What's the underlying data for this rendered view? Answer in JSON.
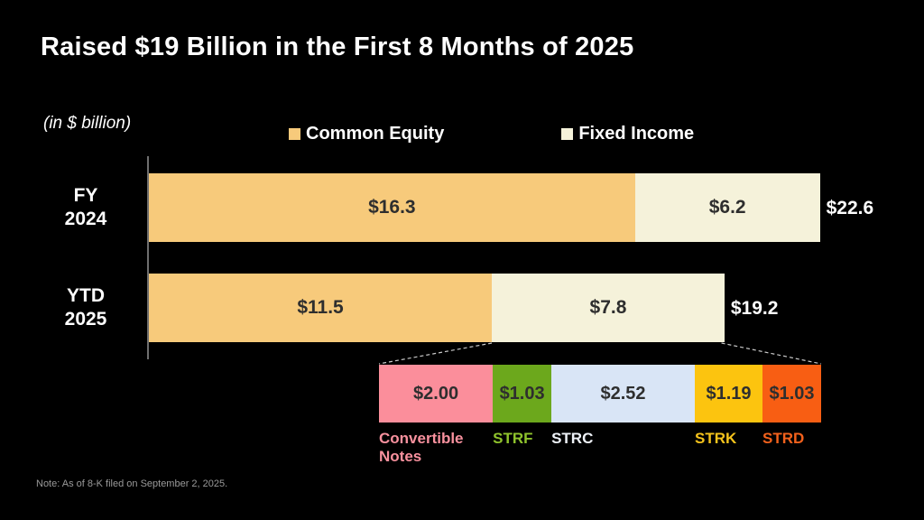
{
  "slide": {
    "title": "Raised $19 Billion in the First 8 Months of 2025",
    "units_label": "(in $ billion)",
    "note": "Note: As of 8-K filed on September 2, 2025."
  },
  "legend": {
    "items": [
      {
        "label": "Common Equity",
        "color": "#F7CA7B"
      },
      {
        "label": "Fixed Income",
        "color": "#F5F2DA"
      }
    ]
  },
  "chart_data": {
    "type": "bar",
    "orientation": "horizontal",
    "stacked": true,
    "unit": "$ billion",
    "title": "Raised $19 Billion in the First 8 Months of 2025",
    "categories": [
      "FY 2024",
      "YTD 2025"
    ],
    "series": [
      {
        "name": "Common Equity",
        "color": "#F7CA7B",
        "values": [
          16.3,
          11.5
        ],
        "labels": [
          "$16.3",
          "$11.5"
        ]
      },
      {
        "name": "Fixed Income",
        "color": "#F5F2DA",
        "values": [
          6.2,
          7.8
        ],
        "labels": [
          "$6.2",
          "$7.8"
        ]
      }
    ],
    "totals": {
      "values": [
        22.6,
        19.2
      ],
      "labels": [
        "$22.6",
        "$19.2"
      ]
    },
    "value_text_color": "#2E2E2E",
    "total_text_color": "#FFFFFF",
    "background": "#000000",
    "legend_position": "top",
    "grid": false,
    "breakdown": {
      "parent": "YTD 2025 Fixed Income",
      "total": 7.77,
      "segments": [
        {
          "name": "Convertible Notes",
          "value": 2.0,
          "value_label": "$2.00",
          "color": "#FB8E9B",
          "name_color": "#F8919E"
        },
        {
          "name": "STRF",
          "value": 1.03,
          "value_label": "$1.03",
          "color": "#6CA81C",
          "name_color": "#8FC32C"
        },
        {
          "name": "STRC",
          "value": 2.52,
          "value_label": "$2.52",
          "color": "#D9E5F6",
          "name_color": "#EEF2F8"
        },
        {
          "name": "STRK",
          "value": 1.19,
          "value_label": "$1.19",
          "color": "#FCC40F",
          "name_color": "#F5C31C"
        },
        {
          "name": "STRD",
          "value": 1.03,
          "value_label": "$1.03",
          "color": "#F85E13",
          "name_color": "#F2611C"
        }
      ]
    }
  }
}
